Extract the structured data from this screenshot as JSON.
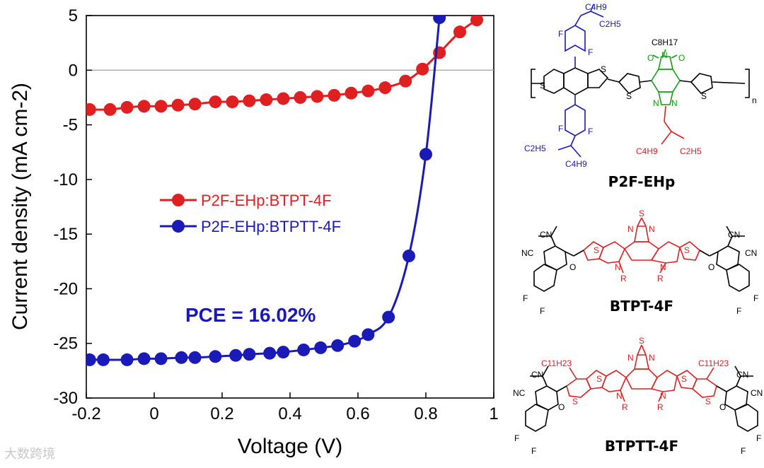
{
  "chart_data": {
    "type": "line",
    "title": "",
    "xlabel": "Voltage (V)",
    "ylabel": "Current density (mA cm-2)",
    "xlim": [
      -0.2,
      1.0
    ],
    "ylim": [
      -30,
      5
    ],
    "x_ticks": [
      "-0.2",
      "0",
      "0.2",
      "0.4",
      "0.6",
      "0.8",
      "1"
    ],
    "y_ticks": [
      "5",
      "0",
      "-5",
      "-10",
      "-15",
      "-20",
      "-25",
      "-30"
    ],
    "legend_position": "center-left",
    "annotation": "PCE = 16.02%",
    "series": [
      {
        "name": "P2F-EHp:BTPT-4F",
        "color": "#e02020",
        "x": [
          -0.19,
          -0.13,
          -0.08,
          -0.03,
          0.02,
          0.07,
          0.12,
          0.18,
          0.23,
          0.28,
          0.33,
          0.38,
          0.43,
          0.48,
          0.53,
          0.58,
          0.63,
          0.68,
          0.74,
          0.79,
          0.84,
          0.9,
          0.95
        ],
        "y": [
          -3.6,
          -3.6,
          -3.4,
          -3.3,
          -3.3,
          -3.2,
          -3.1,
          -2.9,
          -2.9,
          -2.8,
          -2.7,
          -2.6,
          -2.5,
          -2.4,
          -2.3,
          -2.1,
          -1.9,
          -1.6,
          -1.0,
          0.1,
          1.6,
          3.5,
          4.6
        ]
      },
      {
        "name": "P2F-EHp:BTPTT-4F",
        "color": "#1a1ab8",
        "x": [
          -0.19,
          -0.15,
          -0.08,
          -0.03,
          0.02,
          0.08,
          0.12,
          0.18,
          0.24,
          0.28,
          0.34,
          0.38,
          0.44,
          0.49,
          0.54,
          0.59,
          0.63,
          0.69,
          0.75,
          0.8,
          0.84
        ],
        "y": [
          -26.5,
          -26.5,
          -26.5,
          -26.4,
          -26.4,
          -26.3,
          -26.3,
          -26.2,
          -26.1,
          -26.0,
          -25.9,
          -25.8,
          -25.6,
          -25.4,
          -25.2,
          -24.8,
          -24.2,
          -22.6,
          -17.0,
          -7.7,
          4.8
        ]
      }
    ]
  },
  "molecules": {
    "polymer": {
      "name": "P2F-EHp",
      "subscript_n": "n",
      "atoms": {
        "S": "S",
        "F": "F",
        "N": "N",
        "O": "O",
        "C4H9": "C4H9",
        "C2H5": "C2H5",
        "C8H17": "C8H17"
      },
      "colors": {
        "donor_sidechain": "#1a1ab8",
        "acceptor_core": "#10a010",
        "acceptor_sidechain": "#e02020"
      }
    },
    "acceptor1": {
      "name": "BTPT-4F",
      "atoms": {
        "CN": "CN",
        "NC": "NC",
        "R": "R",
        "S": "S",
        "N": "N",
        "O": "O",
        "F": "F"
      }
    },
    "acceptor2": {
      "name": "BTPTT-4F",
      "atoms": {
        "C11H23": "C11H23",
        "CN": "CN",
        "NC": "NC",
        "R": "R",
        "S": "S",
        "N": "N",
        "O": "O",
        "F": "F"
      }
    }
  },
  "watermark": "大数跨境"
}
